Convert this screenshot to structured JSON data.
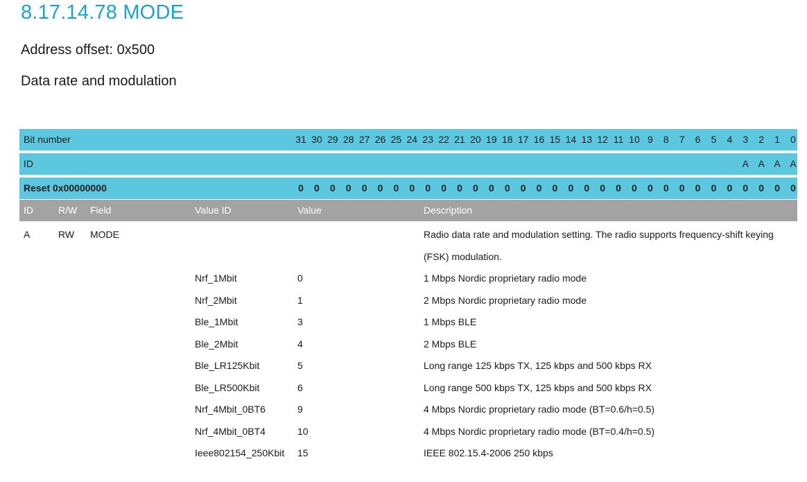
{
  "document": {
    "title": "8.17.14.78 MODE",
    "address_offset": "Address offset: 0x500",
    "summary": "Data rate and modulation"
  },
  "register_table": {
    "bit_number_label": "Bit number",
    "id_label": "ID",
    "reset_label": "Reset 0x00000000",
    "bits": [
      "31",
      "30",
      "29",
      "28",
      "27",
      "26",
      "25",
      "24",
      "23",
      "22",
      "21",
      "20",
      "19",
      "18",
      "17",
      "16",
      "15",
      "14",
      "13",
      "12",
      "11",
      "10",
      "9",
      "8",
      "7",
      "6",
      "5",
      "4",
      "3",
      "2",
      "1",
      "0"
    ],
    "ids": [
      "",
      "",
      "",
      "",
      "",
      "",
      "",
      "",
      "",
      "",
      "",
      "",
      "",
      "",
      "",
      "",
      "",
      "",
      "",
      "",
      "",
      "",
      "",
      "",
      "",
      "",
      "",
      "",
      "A",
      "A",
      "A",
      "A"
    ],
    "reset_values": [
      "0",
      "0",
      "0",
      "0",
      "0",
      "0",
      "0",
      "0",
      "0",
      "0",
      "0",
      "0",
      "0",
      "0",
      "0",
      "0",
      "0",
      "0",
      "0",
      "0",
      "0",
      "0",
      "0",
      "0",
      "0",
      "0",
      "0",
      "0",
      "0",
      "0",
      "0",
      "0"
    ]
  },
  "field_table": {
    "headers": {
      "id": "ID",
      "rw": "R/W",
      "field": "Field",
      "value_id": "Value ID",
      "value": "Value",
      "description": "Description"
    },
    "field": {
      "id": "A",
      "rw": "RW",
      "name": "MODE",
      "description": "Radio data rate and modulation setting. The radio supports frequency-shift keying (FSK) modulation."
    },
    "enums": [
      {
        "value_id": "Nrf_1Mbit",
        "value": "0",
        "description": "1 Mbps Nordic proprietary radio mode"
      },
      {
        "value_id": "Nrf_2Mbit",
        "value": "1",
        "description": "2 Mbps Nordic proprietary radio mode"
      },
      {
        "value_id": "Ble_1Mbit",
        "value": "3",
        "description": "1 Mbps BLE"
      },
      {
        "value_id": "Ble_2Mbit",
        "value": "4",
        "description": "2 Mbps BLE"
      },
      {
        "value_id": "Ble_LR125Kbit",
        "value": "5",
        "description": "Long range 125 kbps TX, 125 kbps and 500 kbps RX"
      },
      {
        "value_id": "Ble_LR500Kbit",
        "value": "6",
        "description": "Long range 500 kbps TX, 125 kbps and 500 kbps RX"
      },
      {
        "value_id": "Nrf_4Mbit_0BT6",
        "value": "9",
        "description": "4 Mbps Nordic proprietary radio mode (BT=0.6/h=0.5)"
      },
      {
        "value_id": "Nrf_4Mbit_0BT4",
        "value": "10",
        "description": "4 Mbps Nordic proprietary radio mode (BT=0.4/h=0.5)"
      },
      {
        "value_id": "Ieee802154_250Kbit",
        "value": "15",
        "description": "IEEE 802.15.4-2006 250 kbps"
      }
    ]
  }
}
